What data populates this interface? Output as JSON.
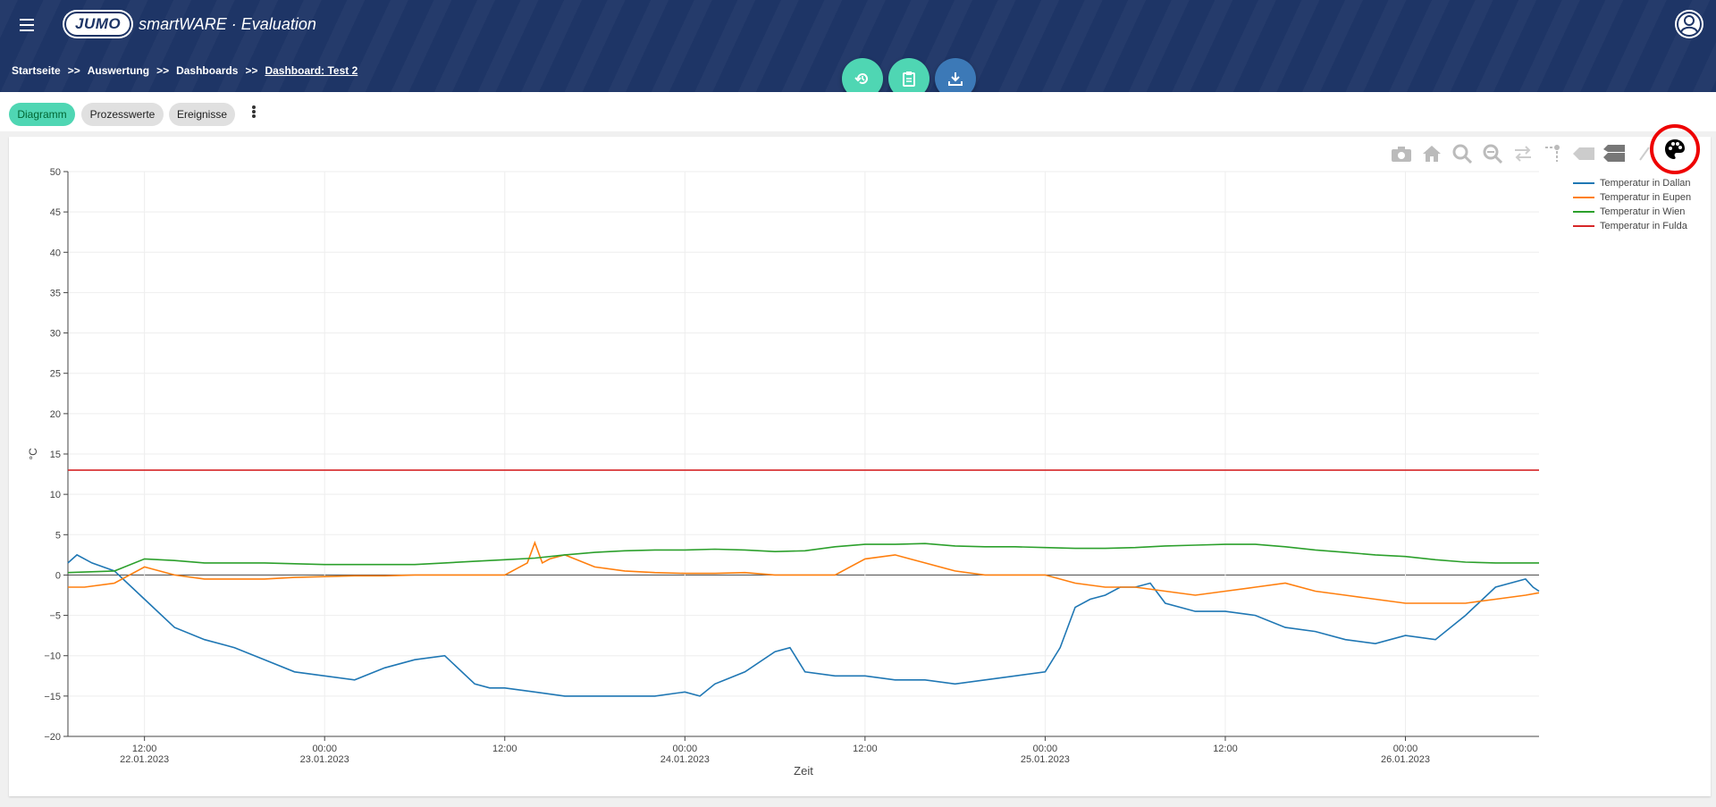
{
  "header": {
    "logo_badge": "JUMO",
    "logo_text": "smartWARE · Evaluation"
  },
  "breadcrumb": {
    "items": [
      "Startseite",
      "Auswertung",
      "Dashboards",
      "Dashboard: Test 2"
    ],
    "separator": ">>"
  },
  "actions": [
    {
      "name": "history",
      "color": "#4fd6b3"
    },
    {
      "name": "clipboard",
      "color": "#4fd6b3"
    },
    {
      "name": "download",
      "color": "#3c79b7"
    }
  ],
  "tabs": [
    {
      "label": "Diagramm",
      "active": true
    },
    {
      "label": "Prozesswerte",
      "active": false
    },
    {
      "label": "Ereignisse",
      "active": false
    }
  ],
  "modebar_icons": [
    "camera-icon",
    "home-icon",
    "zoom-in-icon",
    "zoom-out-icon",
    "pan-icon",
    "autoscale-icon",
    "spike-lines-icon",
    "compare-icon",
    "pencil-icon",
    "palette-icon"
  ],
  "chart_data": {
    "type": "line",
    "xlabel": "Zeit",
    "ylabel": "°C",
    "ylim": [
      -20,
      50
    ],
    "yticks": [
      50,
      45,
      40,
      35,
      30,
      25,
      20,
      15,
      10,
      5,
      0,
      -5,
      -10,
      -15,
      -20
    ],
    "xticks": [
      {
        "time": "12:00",
        "date": "22.01.2023"
      },
      {
        "time": "00:00",
        "date": "23.01.2023"
      },
      {
        "time": "12:00",
        "date": ""
      },
      {
        "time": "00:00",
        "date": "24.01.2023"
      },
      {
        "time": "12:00",
        "date": ""
      },
      {
        "time": "00:00",
        "date": "25.01.2023"
      },
      {
        "time": "12:00",
        "date": ""
      },
      {
        "time": "00:00",
        "date": "26.01.2023"
      }
    ],
    "x_unit": "hours since 22.01.2023 00:00",
    "xlim": [
      6.9,
      104.9
    ],
    "legend_position": "top-right",
    "series": [
      {
        "name": "Temperatur in Dallan",
        "color": "#1f77b4",
        "x": [
          6.9,
          7.5,
          8.5,
          10,
          12,
          14,
          16,
          18,
          20,
          22,
          24,
          26,
          28,
          30,
          32,
          34,
          35,
          36,
          38,
          40,
          42,
          44,
          46,
          48,
          49,
          50,
          52,
          54,
          55,
          56,
          58,
          60,
          62,
          64,
          66,
          68,
          70,
          72,
          73,
          74,
          75,
          76,
          77,
          78,
          79,
          80,
          82,
          84,
          86,
          88,
          90,
          92,
          94,
          96,
          98,
          100,
          102,
          104,
          104.5,
          104.9
        ],
        "y": [
          1.5,
          2.5,
          1.5,
          0.5,
          -3,
          -6.5,
          -8,
          -9,
          -10.5,
          -12,
          -12.5,
          -13,
          -11.5,
          -10.5,
          -10,
          -13.5,
          -14,
          -14,
          -14.5,
          -15,
          -15,
          -15,
          -15,
          -14.5,
          -15,
          -13.5,
          -12,
          -9.5,
          -9,
          -12,
          -12.5,
          -12.5,
          -13,
          -13,
          -13.5,
          -13,
          -12.5,
          -12,
          -9,
          -4,
          -3,
          -2.5,
          -1.5,
          -1.5,
          -1,
          -3.5,
          -4.5,
          -4.5,
          -5,
          -6.5,
          -7,
          -8,
          -8.5,
          -7.5,
          -8,
          -5,
          -1.5,
          -0.5,
          -1.5,
          -2
        ]
      },
      {
        "name": "Temperatur in Eupen",
        "color": "#ff7f0e",
        "x": [
          6.9,
          8,
          10,
          12,
          14,
          16,
          18,
          20,
          22,
          24,
          26,
          28,
          30,
          32,
          34,
          36,
          37.5,
          38,
          38.5,
          39,
          40,
          42,
          44,
          46,
          48,
          50,
          52,
          54,
          56,
          58,
          60,
          62,
          64,
          66,
          68,
          70,
          72,
          74,
          76,
          78,
          80,
          82,
          84,
          86,
          88,
          90,
          92,
          94,
          96,
          98,
          100,
          102,
          104,
          104.9
        ],
        "y": [
          -1.5,
          -1.5,
          -1,
          1,
          0,
          -0.5,
          -0.5,
          -0.5,
          -0.3,
          -0.2,
          -0.1,
          -0.1,
          0,
          0,
          0,
          0,
          1.5,
          4,
          1.5,
          2,
          2.5,
          1,
          0.5,
          0.3,
          0.2,
          0.2,
          0.3,
          0,
          0,
          0,
          2,
          2.5,
          1.5,
          0.5,
          0,
          0,
          0,
          -1,
          -1.5,
          -1.5,
          -2,
          -2.5,
          -2,
          -1.5,
          -1,
          -2,
          -2.5,
          -3,
          -3.5,
          -3.5,
          -3.5,
          -3,
          -2.5,
          -2.2
        ]
      },
      {
        "name": "Temperatur in Wien",
        "color": "#2ca02c",
        "x": [
          6.9,
          10,
          12,
          14,
          16,
          18,
          20,
          22,
          24,
          26,
          28,
          30,
          32,
          34,
          36,
          38,
          40,
          42,
          44,
          46,
          48,
          50,
          52,
          54,
          56,
          58,
          60,
          62,
          64,
          66,
          68,
          70,
          72,
          74,
          76,
          78,
          80,
          82,
          84,
          86,
          88,
          90,
          92,
          94,
          96,
          98,
          100,
          102,
          104,
          104.9
        ],
        "y": [
          0.3,
          0.5,
          2,
          1.8,
          1.5,
          1.5,
          1.5,
          1.4,
          1.3,
          1.3,
          1.3,
          1.3,
          1.5,
          1.7,
          1.9,
          2.1,
          2.5,
          2.8,
          3,
          3.1,
          3.1,
          3.2,
          3.1,
          2.9,
          3,
          3.5,
          3.8,
          3.8,
          3.9,
          3.6,
          3.5,
          3.5,
          3.4,
          3.3,
          3.3,
          3.4,
          3.6,
          3.7,
          3.8,
          3.8,
          3.5,
          3.1,
          2.8,
          2.5,
          2.3,
          1.9,
          1.6,
          1.5,
          1.5,
          1.5
        ]
      },
      {
        "name": "Temperatur in Fulda",
        "color": "#d62728",
        "x": [
          6.9,
          104.9
        ],
        "y": [
          13,
          13
        ]
      }
    ]
  }
}
